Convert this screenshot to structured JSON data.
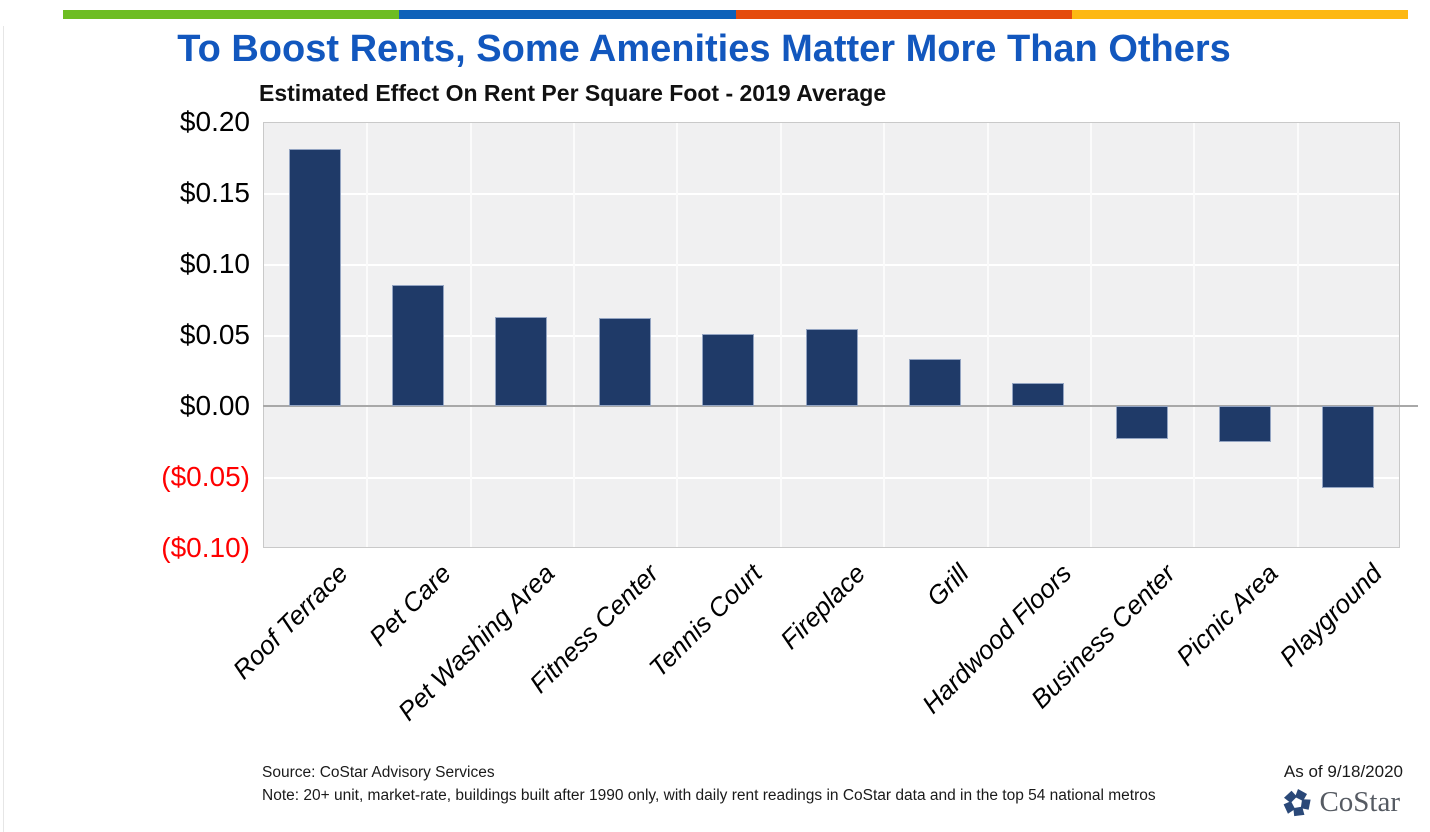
{
  "top_bar": {
    "segment_colors": [
      "#6DBD22",
      "#0E61B9",
      "#E54B0C",
      "#FDB813"
    ]
  },
  "title": {
    "text": "To Boost Rents, Some Amenities Matter More Than Others",
    "color": "#1257BE"
  },
  "chart_data": {
    "type": "bar",
    "title": "Estimated Effect On Rent Per Square Foot - 2019 Average",
    "categories": [
      "Roof Terrace",
      "Pet Care",
      "Pet Washing Area",
      "Fitness Center",
      "Tennis Court",
      "Fireplace",
      "Grill",
      "Hardwood Floors",
      "Business Center",
      "Picnic Area",
      "Playground"
    ],
    "values": [
      0.181,
      0.085,
      0.063,
      0.062,
      0.051,
      0.054,
      0.033,
      0.016,
      -0.023,
      -0.025,
      -0.058
    ],
    "xlabel": "",
    "ylabel": "",
    "ylim": [
      -0.1,
      0.2
    ],
    "ytick_values": [
      0.2,
      0.15,
      0.1,
      0.05,
      0.0,
      -0.05,
      -0.1
    ],
    "ytick_labels": [
      "$0.20",
      "$0.15",
      "$0.10",
      "$0.05",
      "$0.00",
      "($0.05)",
      "($0.10)"
    ],
    "negative_tick_color": "#FF0000",
    "positive_tick_color": "#000000",
    "bar_color": "#1F3A68",
    "bar_border_color": "#93A4C2",
    "plot_background": "#F0F0F1",
    "gridline_color": "#FFFFFF",
    "zero_line_color": "#A8A8A8",
    "grid": true,
    "legend": false
  },
  "footer": {
    "source": "Source: CoStar Advisory Services",
    "note": "Note: 20+ unit, market-rate, buildings built after 1990 only, with daily rent readings in CoStar data and in the top 54 national metros",
    "as_of": "As of 9/18/2020",
    "logo_text": "CoStar",
    "logo_color": "#2A4878"
  }
}
